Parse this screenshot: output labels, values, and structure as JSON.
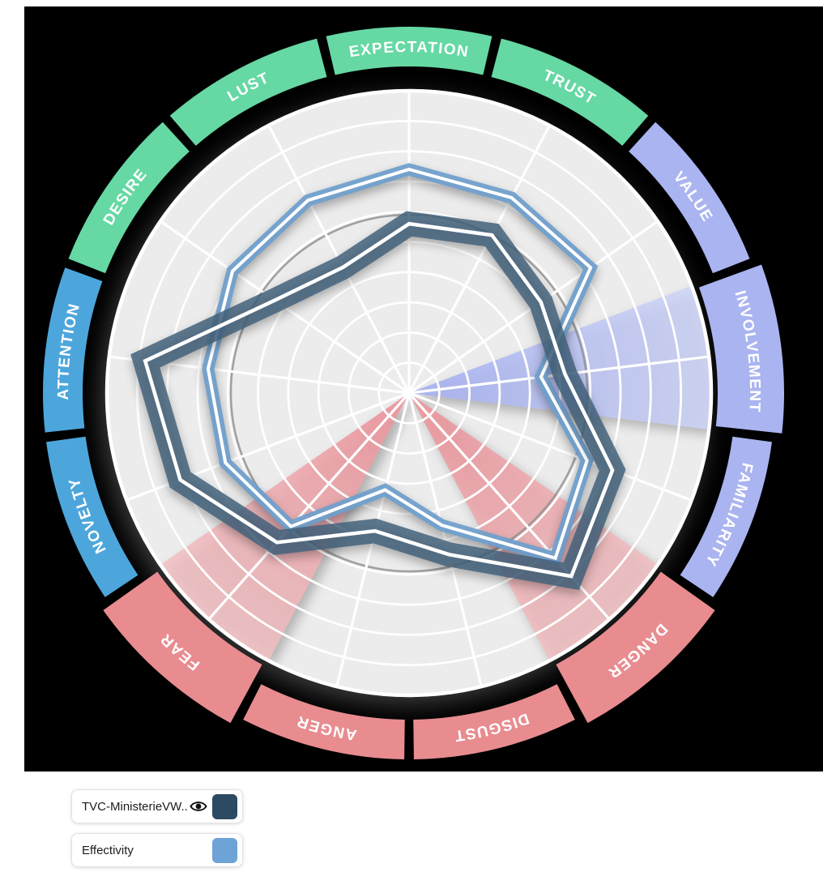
{
  "chart_data": {
    "type": "radar",
    "title": "",
    "scale": {
      "min": 0,
      "max": 10,
      "rings": 10
    },
    "reference_circle_value": 5.9,
    "grid": "on",
    "legend_position": "bottom-left",
    "categories": [
      {
        "label": "EXPECTATION",
        "color": "#66d8a4",
        "highlighted": false
      },
      {
        "label": "TRUST",
        "color": "#66d8a4",
        "highlighted": false
      },
      {
        "label": "VALUE",
        "color": "#aab4f0",
        "highlighted": false
      },
      {
        "label": "INVOLVEMENT",
        "color": "#aab4f0",
        "highlighted": true,
        "wedge_gradient": [
          "#a9b3ee",
          "#ced4f8"
        ]
      },
      {
        "label": "FAMILIARITY",
        "color": "#aab4f0",
        "highlighted": false
      },
      {
        "label": "DANGER",
        "color": "#e88c90",
        "highlighted": true,
        "wedge_gradient": [
          "#e9989e",
          "#f2c0c3"
        ]
      },
      {
        "label": "DISGUST",
        "color": "#e88c90",
        "highlighted": false
      },
      {
        "label": "ANGER",
        "color": "#e88c90",
        "highlighted": false
      },
      {
        "label": "FEAR",
        "color": "#e88c90",
        "highlighted": true,
        "wedge_gradient": [
          "#e9989e",
          "#f2c0c3"
        ]
      },
      {
        "label": "NOVELTY",
        "color": "#4da6db",
        "highlighted": false
      },
      {
        "label": "ATTENTION",
        "color": "#4da6db",
        "highlighted": false
      },
      {
        "label": "DESIRE",
        "color": "#66d8a4",
        "highlighted": false
      },
      {
        "label": "LUST",
        "color": "#66d8a4",
        "highlighted": false
      }
    ],
    "series": [
      {
        "name": "TVC-MinisterieVW...",
        "legend_color": "#2d4a63",
        "band_color": "#42607b",
        "band_width": 30,
        "band_opacity": 0.84,
        "core_width": 4.5,
        "values": [
          5.6,
          5.9,
          5.3,
          5.2,
          7.2,
          8.1,
          5.5,
          4.7,
          6.6,
          8.1,
          8.8,
          5.4,
          4.7
        ]
      },
      {
        "name": "Effectivity",
        "legend_color": "#6da3d5",
        "band_color": "#6f9fcc",
        "band_width": 15,
        "band_opacity": 0.93,
        "core_width": 4,
        "values": [
          7.4,
          7.3,
          7.3,
          4.4,
          6.3,
          7.3,
          4.5,
          3.3,
          5.9,
          6.5,
          6.7,
          7.1,
          7.2
        ]
      }
    ]
  },
  "legend": {
    "items": [
      {
        "label": "TVC-MinisterieVW...",
        "swatch_color": "#2d4a63",
        "has_eye_icon": true
      },
      {
        "label": "Effectivity",
        "swatch_color": "#6da3d5",
        "has_eye_icon": false
      }
    ]
  }
}
